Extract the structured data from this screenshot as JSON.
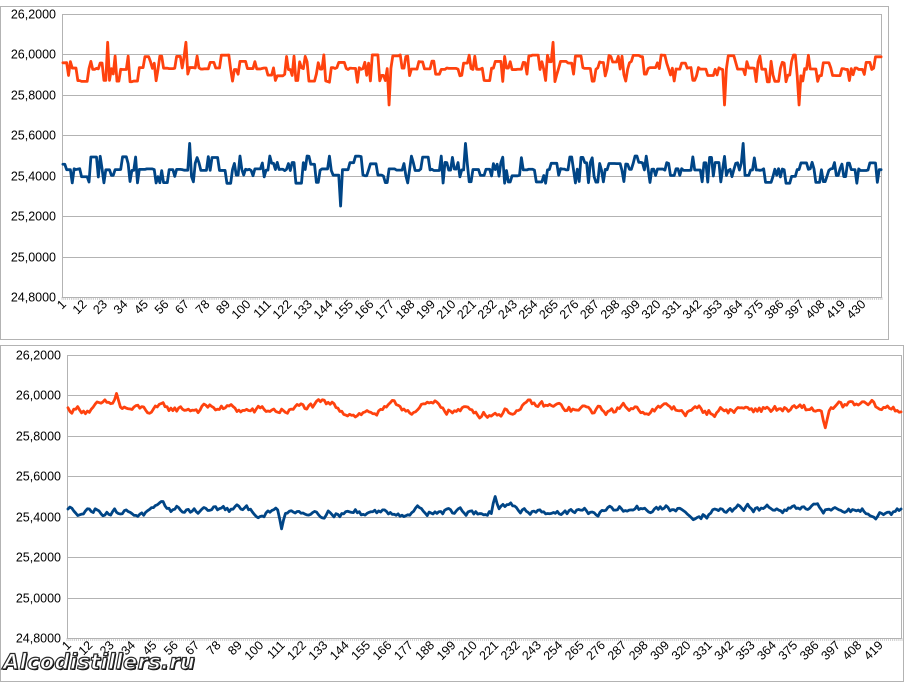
{
  "chart_data": [
    {
      "type": "line",
      "ylim": [
        24.8,
        26.2
      ],
      "yticks": [
        "26,2000",
        "26,0000",
        "25,8000",
        "25,6000",
        "25,4000",
        "25,2000",
        "25,0000",
        "24,8000"
      ],
      "xticks": [
        "1",
        "12",
        "23",
        "34",
        "45",
        "56",
        "67",
        "78",
        "89",
        "100",
        "111",
        "122",
        "133",
        "144",
        "155",
        "166",
        "177",
        "188",
        "199",
        "210",
        "221",
        "232",
        "243",
        "254",
        "265",
        "276",
        "287",
        "298",
        "309",
        "320",
        "331",
        "342",
        "353",
        "364",
        "375",
        "386",
        "397",
        "408",
        "419",
        "430"
      ],
      "x_count": 440,
      "grid": true,
      "series": [
        {
          "color": "#ff420e",
          "mean": 25.93,
          "step": 0.063,
          "spread": 0.07,
          "style": "noisy",
          "spikes": [
            [
              24,
              26.06
            ],
            [
              66,
              26.06
            ],
            [
              175,
              25.75
            ],
            [
              263,
              26.06
            ],
            [
              355,
              25.75
            ],
            [
              395,
              25.75
            ]
          ]
        },
        {
          "color": "#004586",
          "mean": 25.43,
          "step": 0.063,
          "spread": 0.07,
          "style": "noisy",
          "spikes": [
            [
              68,
              25.56
            ],
            [
              149,
              25.25
            ],
            [
              216,
              25.56
            ],
            [
              365,
              25.56
            ]
          ]
        }
      ]
    },
    {
      "type": "line",
      "ylim": [
        24.8,
        26.2
      ],
      "yticks": [
        "26,2000",
        "26,0000",
        "25,8000",
        "25,6000",
        "25,4000",
        "25,2000",
        "25,0000",
        "24,8000"
      ],
      "xticks": [
        "1",
        "12",
        "23",
        "34",
        "45",
        "56",
        "67",
        "78",
        "89",
        "100",
        "111",
        "122",
        "133",
        "144",
        "155",
        "166",
        "177",
        "188",
        "199",
        "210",
        "221",
        "232",
        "243",
        "254",
        "265",
        "276",
        "287",
        "298",
        "309",
        "320",
        "331",
        "342",
        "353",
        "364",
        "375",
        "386",
        "397",
        "408",
        "419"
      ],
      "x_count": 430,
      "grid": true,
      "series": [
        {
          "color": "#ff420e",
          "mean": 25.93,
          "spread": 0.04,
          "style": "smooth",
          "spikes": [
            [
              25,
              26.01
            ],
            [
              390,
              25.84
            ]
          ]
        },
        {
          "color": "#004586",
          "mean": 25.43,
          "spread": 0.035,
          "style": "smooth",
          "spikes": [
            [
              110,
              25.34
            ],
            [
              220,
              25.5
            ]
          ]
        }
      ]
    }
  ],
  "watermark": "Alcodistillers.ru"
}
